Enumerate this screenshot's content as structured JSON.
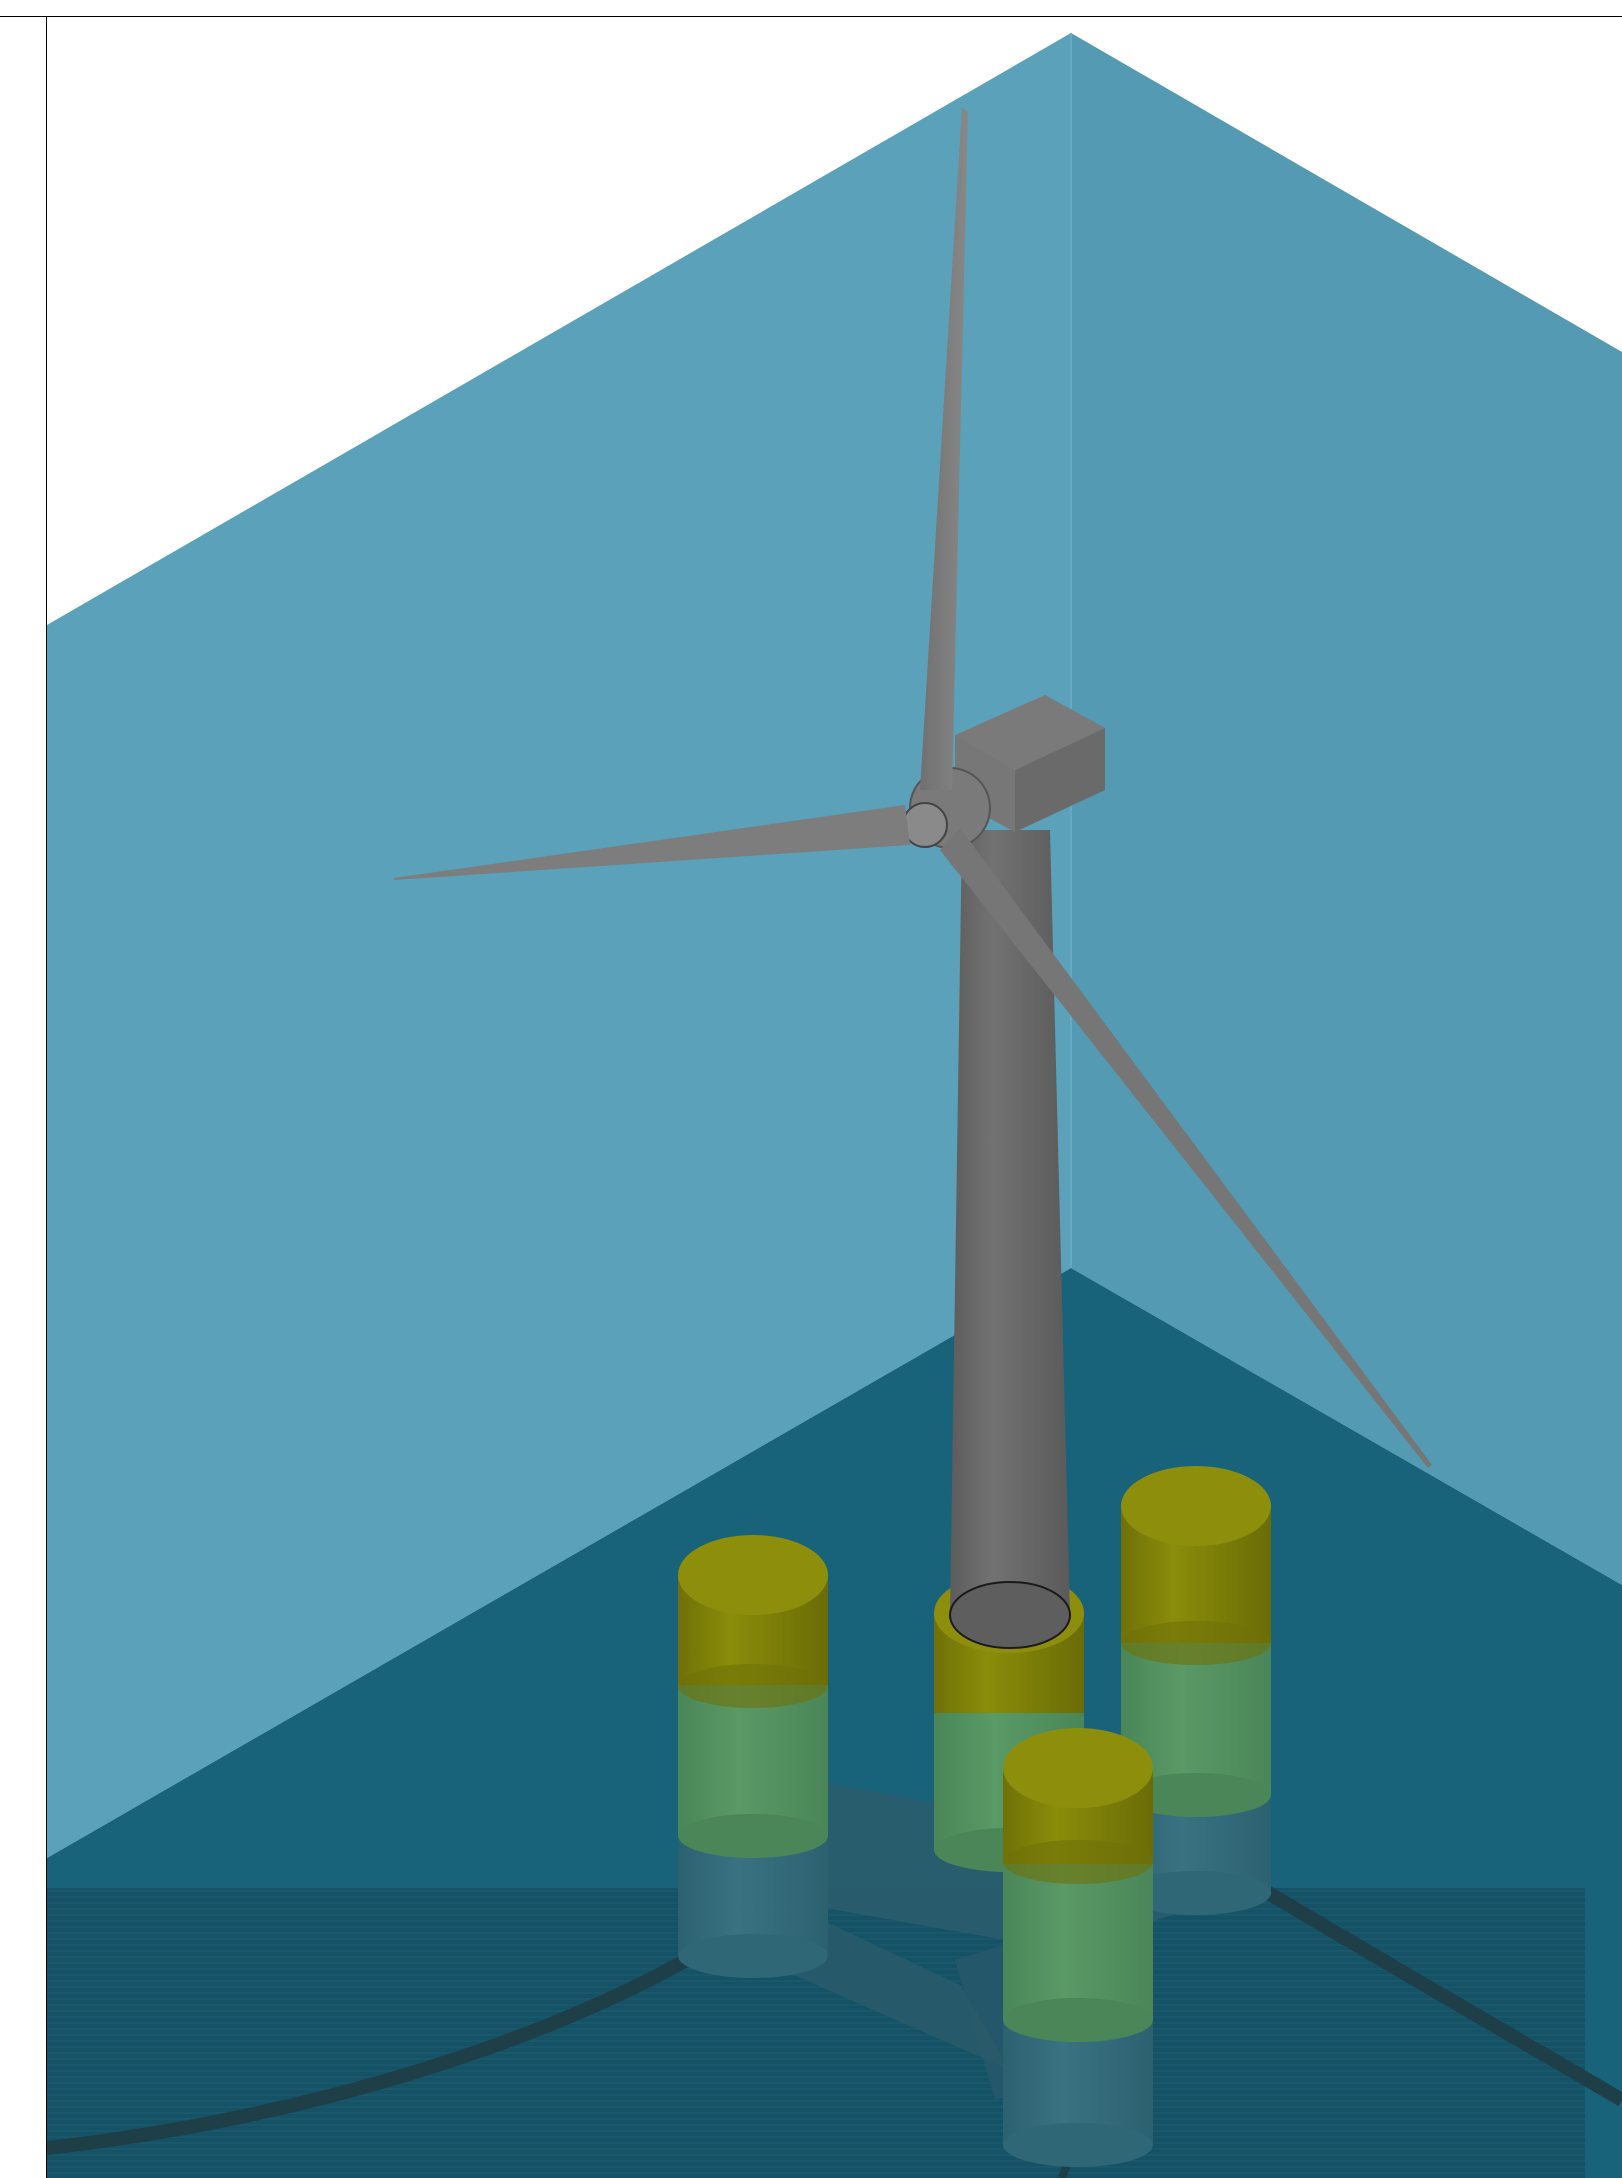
{
  "scene": {
    "subject": "floating-offshore-wind-turbine",
    "components": [
      "rotor-blades",
      "hub",
      "nacelle",
      "tower",
      "semi-submersible-columns",
      "pontoons",
      "mooring-lines",
      "sea-floor",
      "background-walls"
    ]
  },
  "colors": {
    "wall_left": "#5BA1BA",
    "wall_right": "#549AB3",
    "water": "#18637A",
    "seafloor": "#144F62",
    "steel": "#6E6E6E",
    "column_top": "#8D8F0C",
    "column_band": "#7A7C0A",
    "column_green": "#4F8F5E",
    "column_submerged": "#2F6776",
    "pontoon": "#2A5C6C",
    "mooring": "#1E3E48"
  }
}
